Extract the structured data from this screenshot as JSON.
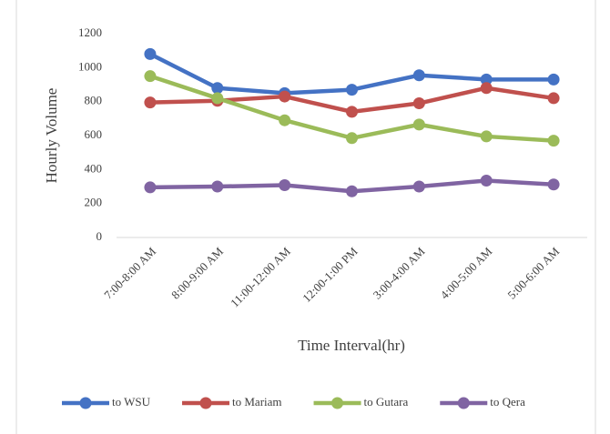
{
  "chart_data": {
    "type": "line",
    "xlabel": "Time Interval(hr)",
    "ylabel": "Hourly Volume",
    "categories": [
      "7:00-8:00 AM",
      "8:00-9:00 AM",
      "11:00-12:00 AM",
      "12:00-1:00 PM",
      "3:00-4:00 AM",
      "4:00-5:00 AM",
      "5:00-6:00 AM"
    ],
    "series": [
      {
        "name": "to WSU",
        "color": "#4472c4",
        "values": [
          1080,
          880,
          850,
          870,
          955,
          930,
          930
        ]
      },
      {
        "name": "to Mariam",
        "color": "#c0504d",
        "values": [
          795,
          805,
          830,
          740,
          790,
          880,
          820
        ]
      },
      {
        "name": "to Gutara",
        "color": "#9bbb59",
        "values": [
          950,
          820,
          690,
          585,
          665,
          595,
          570
        ]
      },
      {
        "name": "to Qera",
        "color": "#8064a2",
        "values": [
          295,
          300,
          308,
          272,
          300,
          335,
          312
        ]
      }
    ],
    "ylim": [
      0,
      1200
    ],
    "yticks": [
      0,
      200,
      400,
      600,
      800,
      1000,
      1200
    ],
    "grid": false,
    "legend": "bottom"
  }
}
